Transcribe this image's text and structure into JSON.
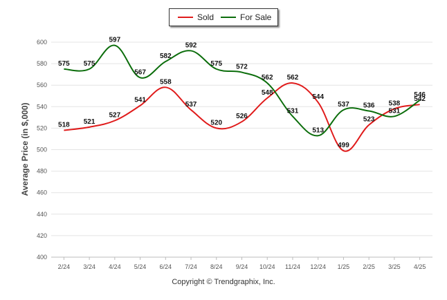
{
  "chart_data": {
    "type": "line",
    "categories": [
      "2/24",
      "3/24",
      "4/24",
      "5/24",
      "6/24",
      "7/24",
      "8/24",
      "9/24",
      "10/24",
      "11/24",
      "12/24",
      "1/25",
      "2/25",
      "3/25",
      "4/25"
    ],
    "series": [
      {
        "name": "Sold",
        "color": "#e01b1b",
        "values": [
          518,
          521,
          527,
          541,
          558,
          537,
          520,
          526,
          548,
          562,
          544,
          499,
          523,
          538,
          542
        ]
      },
      {
        "name": "For Sale",
        "color": "#0b6d0b",
        "values": [
          575,
          575,
          597,
          567,
          582,
          592,
          575,
          572,
          562,
          531,
          513,
          537,
          536,
          531,
          546
        ]
      }
    ],
    "ylabel": "Average Price (in $,000)",
    "ylim": [
      400,
      600
    ],
    "yticks": [
      400,
      420,
      440,
      460,
      480,
      500,
      520,
      540,
      560,
      580,
      600
    ],
    "grid": true,
    "legend_position": "top-center"
  },
  "footer": {
    "copyright": "Copyright © Trendgraphix, Inc."
  }
}
